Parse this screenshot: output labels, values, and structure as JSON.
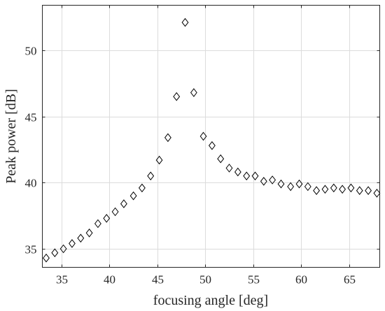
{
  "chart_data": {
    "type": "scatter",
    "title": "",
    "xlabel": "focusing angle [deg]",
    "ylabel": "Peak power [dB]",
    "xlim": [
      33,
      68.2
    ],
    "ylim": [
      33.6,
      53.4
    ],
    "xticks": [
      35,
      40,
      45,
      50,
      55,
      60,
      65
    ],
    "yticks": [
      35,
      40,
      45,
      50
    ],
    "grid": true,
    "marker": "diamond-open",
    "marker_color": "#000000",
    "series": [
      {
        "x": [
          33.4,
          34.3,
          35.2,
          36.1,
          37.0,
          37.9,
          38.8,
          39.7,
          40.6,
          41.5,
          42.5,
          43.4,
          44.3,
          45.2,
          46.1,
          47.0,
          47.9,
          48.8,
          49.8,
          50.7,
          51.6,
          52.5,
          53.4,
          54.3,
          55.2,
          56.1,
          57.0,
          57.9,
          58.9,
          59.8,
          60.7,
          61.6,
          62.5,
          63.4,
          64.3,
          65.2,
          66.1,
          67.0,
          67.9
        ],
        "y": [
          34.3,
          34.7,
          35.0,
          35.4,
          35.8,
          36.2,
          36.9,
          37.3,
          37.8,
          38.4,
          39.0,
          39.6,
          40.5,
          41.7,
          43.4,
          46.5,
          52.1,
          46.8,
          43.5,
          42.8,
          41.8,
          41.1,
          40.8,
          40.5,
          40.5,
          40.1,
          40.2,
          39.9,
          39.7,
          39.9,
          39.7,
          39.4,
          39.5,
          39.6,
          39.5,
          39.6,
          39.4,
          39.4,
          39.2
        ]
      }
    ]
  }
}
